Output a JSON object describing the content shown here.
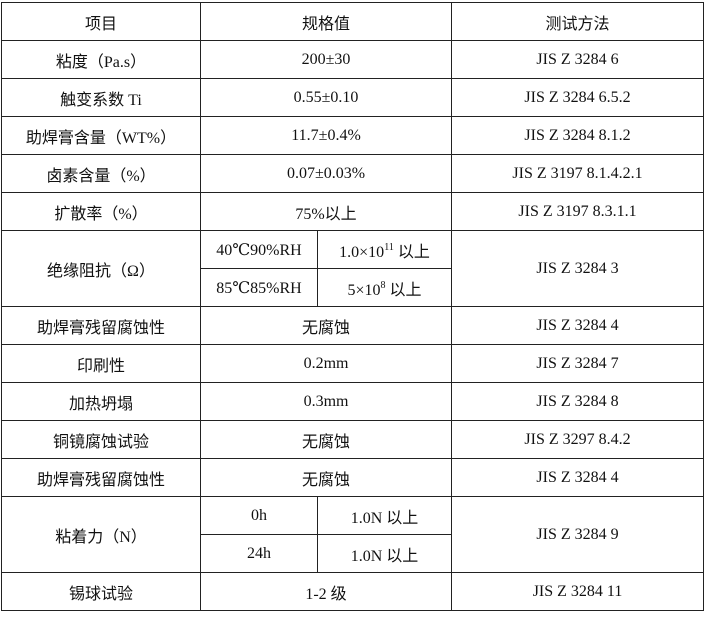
{
  "header": {
    "item": "项目",
    "spec": "规格值",
    "method": "测试方法"
  },
  "rows": [
    {
      "item": "粘度（Pa.s）",
      "spec": "200±30",
      "method": "JIS Z 3284 6"
    },
    {
      "item": "触变系数 Ti",
      "spec": "0.55±0.10",
      "method": "JIS Z 3284 6.5.2"
    },
    {
      "item": "助焊膏含量（WT%）",
      "spec": "11.7±0.4%",
      "method": "JIS Z 3284 8.1.2"
    },
    {
      "item": "卤素含量（%）",
      "spec": "0.07±0.03%",
      "method": "JIS Z 3197 8.1.4.2.1"
    },
    {
      "item": "扩散率（%）",
      "spec": "75%以上",
      "method": "JIS Z 3197 8.3.1.1"
    }
  ],
  "insulation": {
    "item": "绝缘阻抗（Ω）",
    "method": "JIS Z 3284 3",
    "sub": [
      {
        "condition": "40℃90%RH",
        "base": "1.0×10",
        "exp": "11",
        "suffix": " 以上"
      },
      {
        "condition": "85℃85%RH",
        "base": "5×10",
        "exp": "8",
        "suffix": " 以上"
      }
    ]
  },
  "rows2": [
    {
      "item": "助焊膏残留腐蚀性",
      "spec": "无腐蚀",
      "method": "JIS Z 3284 4"
    },
    {
      "item": "印刷性",
      "spec": "0.2mm",
      "method": "JIS Z 3284 7"
    },
    {
      "item": "加热坍塌",
      "spec": "0.3mm",
      "method": "JIS Z 3284 8"
    },
    {
      "item": "铜镜腐蚀试验",
      "spec": "无腐蚀",
      "method": "JIS Z 3297 8.4.2"
    },
    {
      "item": "助焊膏残留腐蚀性",
      "spec": "无腐蚀",
      "method": "JIS Z 3284 4"
    }
  ],
  "adhesion": {
    "item": "粘着力（N）",
    "method": "JIS Z 3284 9",
    "sub": [
      {
        "condition": "0h",
        "value": "1.0N 以上"
      },
      {
        "condition": "24h",
        "value": "1.0N 以上"
      }
    ]
  },
  "last": {
    "item": "锡球试验",
    "spec": "1-2 级",
    "method": "JIS Z 3284 11"
  }
}
